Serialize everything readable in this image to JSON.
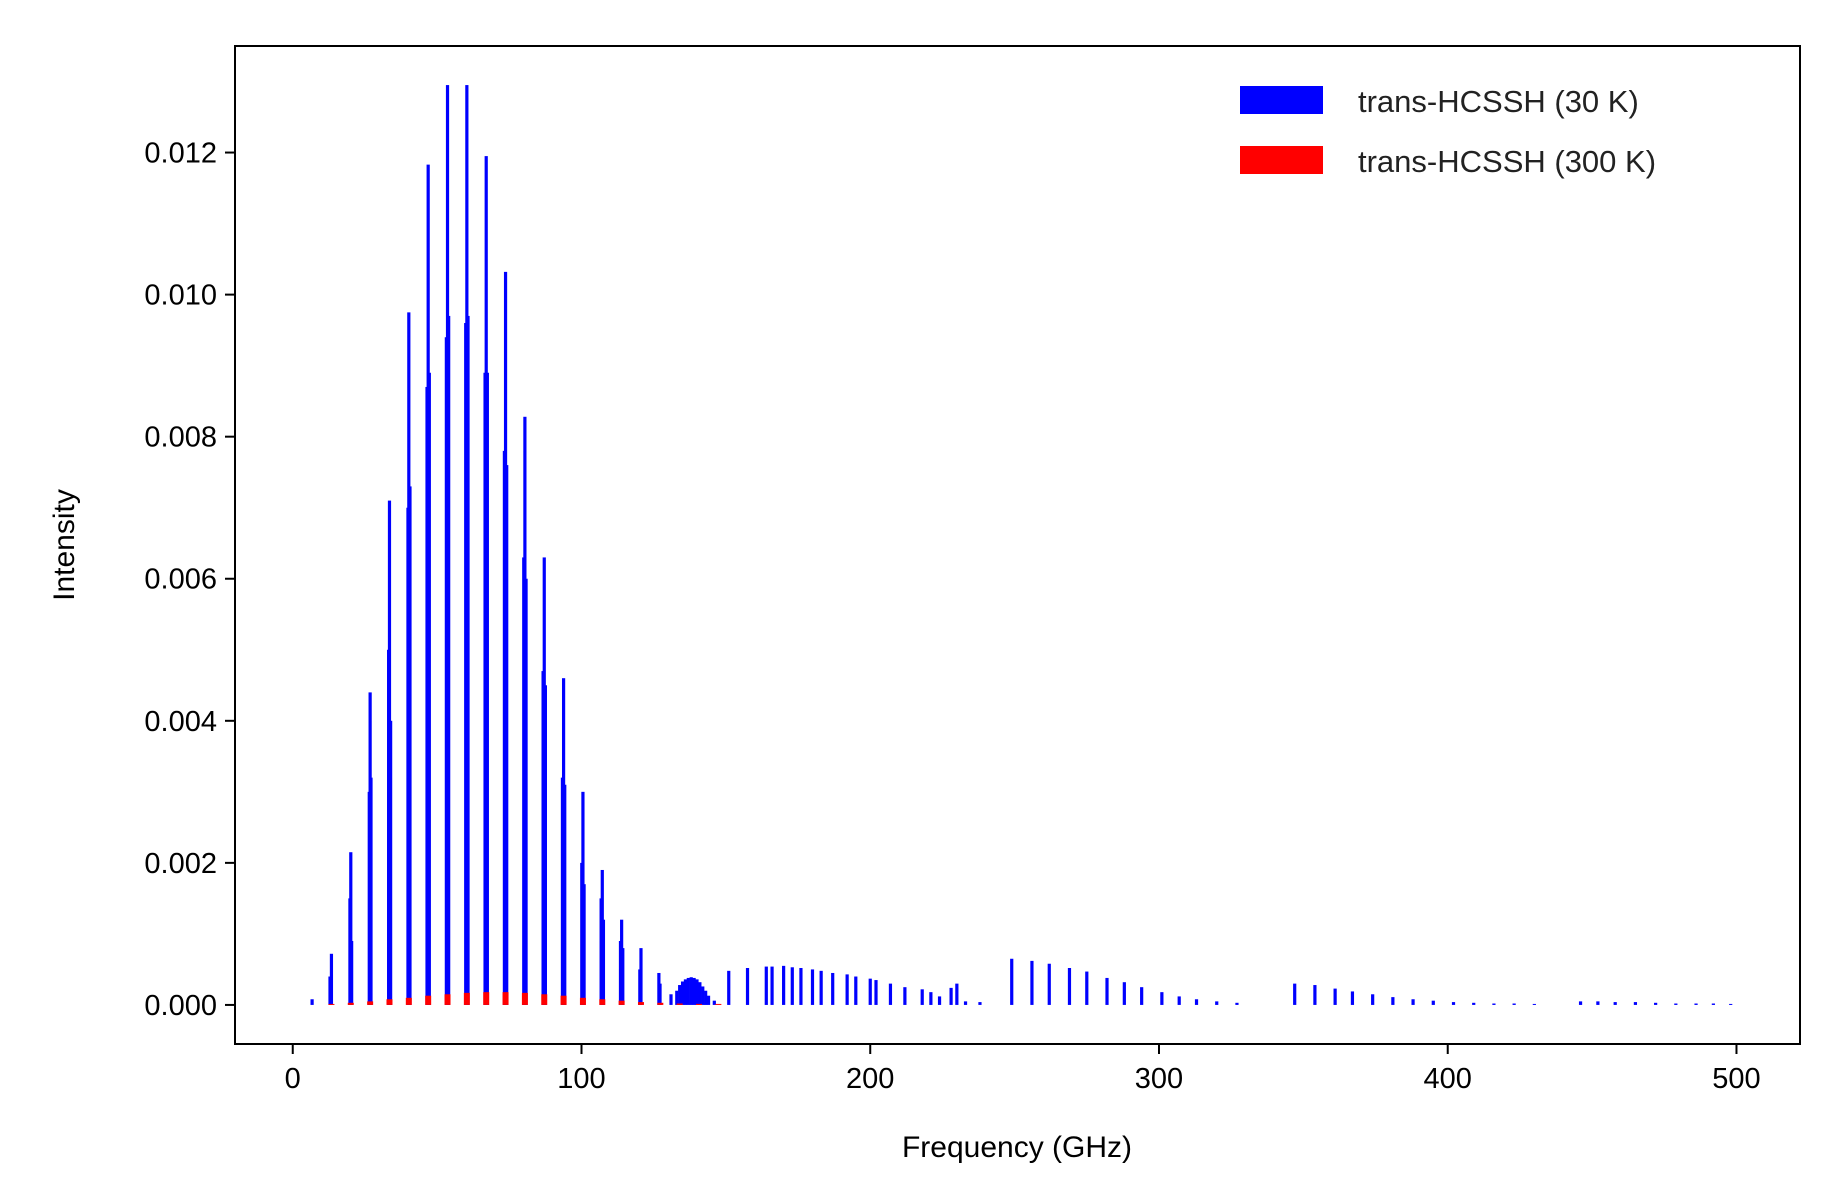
{
  "chart_data": {
    "type": "bar",
    "xlabel": "Frequency (GHz)",
    "ylabel": "Intensity",
    "xlim": [
      -20,
      522
    ],
    "ylim": [
      -0.00055,
      0.0135
    ],
    "xticks": [
      0,
      100,
      200,
      300,
      400,
      500
    ],
    "yticks": [
      0.0,
      0.002,
      0.004,
      0.006,
      0.008,
      0.01,
      0.012
    ],
    "ytick_labels": [
      "0.000",
      "0.002",
      "0.004",
      "0.006",
      "0.008",
      "0.010",
      "0.012"
    ],
    "grid": false,
    "legend_position": "top-right",
    "series": [
      {
        "name": "trans-HCSSH (30 K)",
        "color": "#0000ff",
        "points": [
          [
            6.7,
            8e-05
          ],
          [
            13.4,
            0.00072
          ],
          [
            12.9,
            0.0004
          ],
          [
            20.1,
            0.00215
          ],
          [
            19.8,
            0.0015
          ],
          [
            20.4,
            0.0009
          ],
          [
            26.8,
            0.0044
          ],
          [
            26.5,
            0.003
          ],
          [
            27.1,
            0.0032
          ],
          [
            33.5,
            0.0071
          ],
          [
            33.2,
            0.005
          ],
          [
            33.9,
            0.004
          ],
          [
            40.2,
            0.00975
          ],
          [
            39.9,
            0.007
          ],
          [
            40.6,
            0.0073
          ],
          [
            46.9,
            0.01183
          ],
          [
            46.5,
            0.0087
          ],
          [
            47.3,
            0.0089
          ],
          [
            53.6,
            0.01295
          ],
          [
            53.2,
            0.0094
          ],
          [
            54.0,
            0.0097
          ],
          [
            60.3,
            0.01295
          ],
          [
            59.9,
            0.0096
          ],
          [
            60.7,
            0.0097
          ],
          [
            67.0,
            0.01195
          ],
          [
            66.6,
            0.0089
          ],
          [
            67.4,
            0.0089
          ],
          [
            73.7,
            0.01032
          ],
          [
            73.3,
            0.0078
          ],
          [
            74.1,
            0.0076
          ],
          [
            80.4,
            0.00828
          ],
          [
            80.0,
            0.0063
          ],
          [
            80.8,
            0.006
          ],
          [
            87.1,
            0.0063
          ],
          [
            86.7,
            0.0047
          ],
          [
            87.5,
            0.0045
          ],
          [
            93.8,
            0.0046
          ],
          [
            93.4,
            0.0032
          ],
          [
            94.2,
            0.0031
          ],
          [
            100.5,
            0.003
          ],
          [
            100.1,
            0.002
          ],
          [
            100.9,
            0.0017
          ],
          [
            107.2,
            0.0019
          ],
          [
            106.8,
            0.0015
          ],
          [
            107.6,
            0.0012
          ],
          [
            113.9,
            0.0012
          ],
          [
            113.5,
            0.0009
          ],
          [
            114.3,
            0.0008
          ],
          [
            120.6,
            0.0008
          ],
          [
            120.2,
            0.0005
          ],
          [
            126.8,
            0.00045
          ],
          [
            127.2,
            0.0003
          ],
          [
            131,
            0.00015
          ],
          [
            133,
            0.0002
          ],
          [
            134,
            0.00028
          ],
          [
            135,
            0.00033
          ],
          [
            136,
            0.00036
          ],
          [
            137,
            0.00038
          ],
          [
            138,
            0.00039
          ],
          [
            139,
            0.00038
          ],
          [
            140,
            0.00036
          ],
          [
            141,
            0.00032
          ],
          [
            142,
            0.00026
          ],
          [
            143,
            0.0002
          ],
          [
            144,
            0.00013
          ],
          [
            146,
            6e-05
          ],
          [
            151,
            0.00048
          ],
          [
            157.5,
            0.00052
          ],
          [
            164,
            0.00054
          ],
          [
            166,
            0.00054
          ],
          [
            170,
            0.00055
          ],
          [
            173,
            0.00053
          ],
          [
            176,
            0.00052
          ],
          [
            180,
            0.0005
          ],
          [
            183,
            0.00048
          ],
          [
            187,
            0.00045
          ],
          [
            192,
            0.00043
          ],
          [
            195,
            0.0004
          ],
          [
            200,
            0.00037
          ],
          [
            202,
            0.00035
          ],
          [
            207,
            0.0003
          ],
          [
            212,
            0.00025
          ],
          [
            218,
            0.00022
          ],
          [
            221,
            0.00018
          ],
          [
            224,
            0.00012
          ],
          [
            228,
            0.00024
          ],
          [
            230,
            0.0003
          ],
          [
            233,
            5e-05
          ],
          [
            238,
            4e-05
          ],
          [
            249,
            0.00065
          ],
          [
            256,
            0.00062
          ],
          [
            262,
            0.00058
          ],
          [
            269,
            0.00052
          ],
          [
            275,
            0.00047
          ],
          [
            282,
            0.00038
          ],
          [
            288,
            0.00032
          ],
          [
            294,
            0.00025
          ],
          [
            301,
            0.00018
          ],
          [
            307,
            0.00012
          ],
          [
            313,
            8e-05
          ],
          [
            320,
            5e-05
          ],
          [
            327,
            3e-05
          ],
          [
            347,
            0.0003
          ],
          [
            354,
            0.00028
          ],
          [
            361,
            0.00023
          ],
          [
            367,
            0.00019
          ],
          [
            374,
            0.00015
          ],
          [
            381,
            0.00011
          ],
          [
            388,
            8e-05
          ],
          [
            395,
            6e-05
          ],
          [
            402,
            4e-05
          ],
          [
            409,
            3e-05
          ],
          [
            416,
            2e-05
          ],
          [
            423,
            2e-05
          ],
          [
            430,
            1e-05
          ],
          [
            446,
            5e-05
          ],
          [
            452,
            5e-05
          ],
          [
            458,
            4e-05
          ],
          [
            465,
            4e-05
          ],
          [
            472,
            3e-05
          ],
          [
            479,
            2e-05
          ],
          [
            486,
            2e-05
          ],
          [
            492,
            2e-05
          ],
          [
            498,
            1e-05
          ]
        ]
      },
      {
        "name": "trans-HCSSH (300 K)",
        "color": "#ff0000",
        "points": [
          [
            13.4,
            1e-05
          ],
          [
            20.1,
            3e-05
          ],
          [
            26.8,
            5e-05
          ],
          [
            33.5,
            8e-05
          ],
          [
            40.2,
            0.0001
          ],
          [
            46.9,
            0.00013
          ],
          [
            53.6,
            0.00015
          ],
          [
            60.3,
            0.00017
          ],
          [
            67.0,
            0.00018
          ],
          [
            73.7,
            0.00018
          ],
          [
            80.4,
            0.00017
          ],
          [
            87.1,
            0.00015
          ],
          [
            93.8,
            0.00013
          ],
          [
            100.5,
            0.0001
          ],
          [
            107.2,
            8e-05
          ],
          [
            113.9,
            6e-05
          ],
          [
            120.6,
            4e-05
          ],
          [
            127.3,
            3e-05
          ],
          [
            134,
            2e-05
          ],
          [
            140.7,
            1.5e-05
          ],
          [
            147.4,
            1e-05
          ]
        ]
      }
    ]
  }
}
